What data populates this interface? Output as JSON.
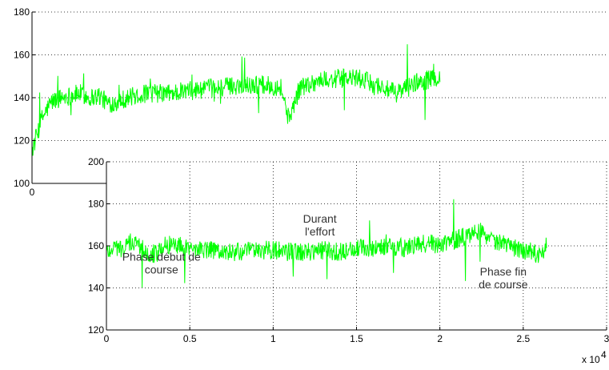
{
  "chart_data": [
    {
      "type": "line",
      "name": "top",
      "x_ticks": [
        0
      ],
      "y_ticks": [
        100,
        120,
        140,
        160,
        180
      ],
      "xlim": [
        0,
        30000
      ],
      "ylim": [
        100,
        180
      ],
      "grid": true,
      "color": "#00ff00",
      "series": [
        {
          "x": [
            0,
            500,
            1000,
            1500,
            2000,
            2500,
            3000,
            3500,
            4000,
            5000,
            6000,
            7000,
            8000,
            9000,
            10000,
            11000,
            12000,
            13000,
            13400,
            14000,
            15000,
            16000,
            17000,
            18000,
            19000,
            20000,
            21000,
            21300
          ],
          "y": [
            115,
            130,
            138,
            140,
            141,
            142,
            140,
            141,
            137,
            140,
            142,
            142,
            143,
            144,
            145,
            146,
            146,
            145,
            130,
            145,
            148,
            149,
            149,
            146,
            142,
            147,
            149,
            150
          ]
        }
      ]
    },
    {
      "type": "line",
      "name": "bottom",
      "x_ticks": [
        0,
        0.5,
        1,
        1.5,
        2,
        2.5,
        3
      ],
      "x_tick_labels": [
        "0",
        "0.5",
        "1",
        "1.5",
        "2",
        "2.5",
        "3"
      ],
      "x_multiplier": "x 10",
      "x_multiplier_exp": "4",
      "y_ticks": [
        120,
        140,
        160,
        180,
        200
      ],
      "xlim": [
        0,
        30000
      ],
      "ylim": [
        120,
        200
      ],
      "grid": true,
      "color": "#00ff00",
      "annotations": [
        {
          "lines": [
            "Phase début de",
            "course"
          ],
          "x": 3300,
          "y": 153
        },
        {
          "lines": [
            "Durant",
            "l'effort"
          ],
          "x": 12800,
          "y": 171
        },
        {
          "lines": [
            "Phase fin",
            "de course"
          ],
          "x": 23800,
          "y": 146
        }
      ],
      "series": [
        {
          "x": [
            0,
            500,
            1000,
            1500,
            2000,
            2500,
            3000,
            3500,
            4000,
            5000,
            6000,
            7000,
            8000,
            9000,
            10000,
            11000,
            12000,
            13000,
            14000,
            15000,
            16000,
            17000,
            18000,
            19000,
            20000,
            21000,
            22000,
            22500,
            23000,
            24000,
            25000,
            26000,
            26400
          ],
          "y": [
            157,
            160,
            158,
            162,
            160,
            157,
            156,
            160,
            161,
            159,
            158,
            157,
            157,
            158,
            158,
            157,
            157,
            158,
            157,
            159,
            159,
            160,
            159,
            161,
            161,
            163,
            166,
            168,
            163,
            160,
            158,
            156,
            160
          ]
        }
      ]
    }
  ]
}
